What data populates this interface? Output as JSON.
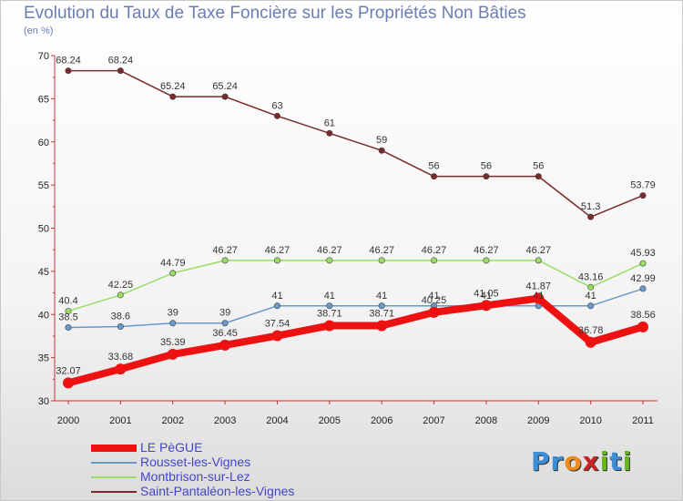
{
  "title": "Evolution du Taux de Taxe Foncière sur les Propriétés Non Bâties",
  "subtitle": "(en %)",
  "logo": {
    "text": "Proxiti",
    "letters": [
      "P",
      "r",
      "o",
      "x",
      "i",
      "t",
      "i"
    ],
    "colors": [
      "#3b8ed8",
      "#3b8ed8",
      "#f08a1c",
      "#cc2222",
      "#66b81e",
      "#3b8ed8",
      "#66b81e"
    ]
  },
  "chart_data": {
    "type": "line",
    "title": "Evolution du Taux de Taxe Foncière sur les Propriétés Non Bâties",
    "ylabel": "(en %)",
    "x": [
      "2000",
      "2001",
      "2002",
      "2003",
      "2004",
      "2005",
      "2006",
      "2007",
      "2008",
      "2009",
      "2010",
      "2011"
    ],
    "ylim": [
      30,
      70
    ],
    "yticks": [
      30,
      35,
      40,
      45,
      50,
      55,
      60,
      65,
      70
    ],
    "grid": false,
    "legend_position": "bottom-left",
    "series": [
      {
        "name": "Saint-Pantaléon-les-Vignes",
        "color": "#7a2a2a",
        "values": [
          68.24,
          68.24,
          65.24,
          65.24,
          63,
          61,
          59,
          56,
          56,
          56,
          51.3,
          53.79
        ],
        "labels": [
          "68.24",
          "68.24",
          "65.24",
          "65.24",
          "63",
          "61",
          "59",
          "56",
          "56",
          "56",
          "51.3",
          "53.79"
        ]
      },
      {
        "name": "Montbrison-sur-Lez",
        "color": "#99dd66",
        "values": [
          40.4,
          42.25,
          44.79,
          46.27,
          46.27,
          46.27,
          46.27,
          46.27,
          46.27,
          46.27,
          43.16,
          45.93
        ],
        "labels": [
          "40.4",
          "42.25",
          "44.79",
          "46.27",
          "46.27",
          "46.27",
          "46.27",
          "46.27",
          "46.27",
          "46.27",
          "43.16",
          "45.93"
        ]
      },
      {
        "name": "Rousset-les-Vignes",
        "color": "#6699cc",
        "values": [
          38.5,
          38.6,
          39,
          39,
          41,
          41,
          41,
          41,
          41,
          41,
          41,
          42.99
        ],
        "labels": [
          "38.5",
          "38.6",
          "39",
          "39",
          "41",
          "41",
          "41",
          "41",
          "41",
          "41",
          "41",
          "42.99"
        ]
      },
      {
        "name": "LE PèGUE",
        "color": "#ee1111",
        "values": [
          32.07,
          33.68,
          35.39,
          36.45,
          37.54,
          38.71,
          38.71,
          40.25,
          41.05,
          41.87,
          36.78,
          38.56
        ],
        "labels": [
          "32.07",
          "33.68",
          "35.39",
          "36.45",
          "37.54",
          "38.71",
          "38.71",
          "40.25",
          "41.05",
          "41.87",
          "36.78",
          "38.56"
        ]
      }
    ],
    "legend": [
      "LE PèGUE",
      "Rousset-les-Vignes",
      "Montbrison-sur-Lez",
      "Saint-Pantaléon-les-Vignes"
    ]
  }
}
